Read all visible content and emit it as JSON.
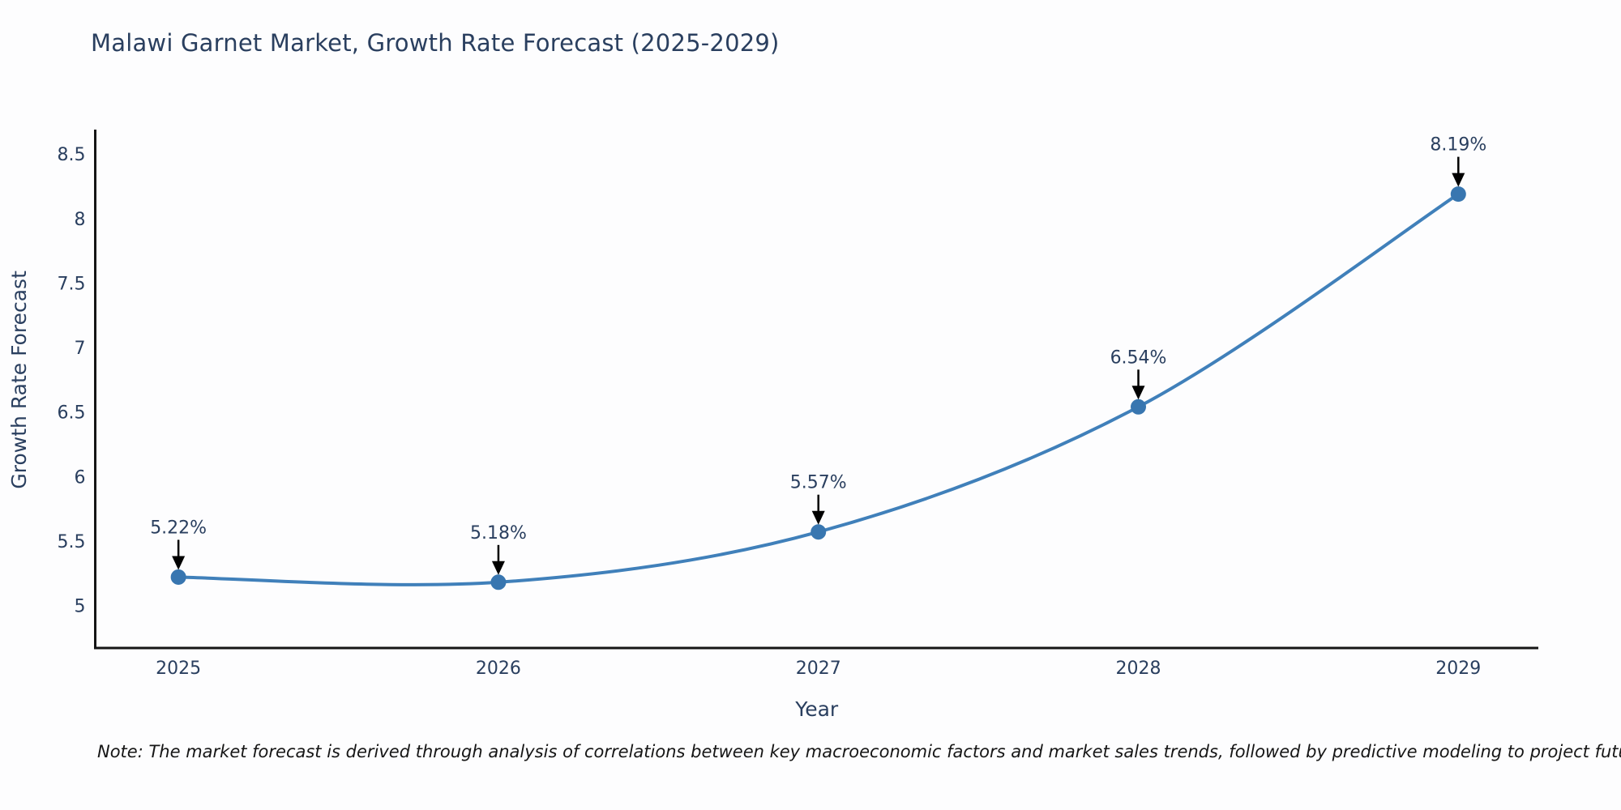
{
  "note": "Note: The market forecast is derived through analysis of correlations between key macroeconomic factors and market sales trends, followed by predictive modeling to project future sales",
  "chart_data": {
    "type": "line",
    "title": "Malawi Garnet Market, Growth Rate Forecast (2025-2029)",
    "xlabel": "Year",
    "ylabel": "Growth Rate Forecast",
    "x": [
      2025,
      2026,
      2027,
      2028,
      2029
    ],
    "series": [
      {
        "name": "Growth Rate Forecast",
        "values": [
          5.22,
          5.18,
          5.57,
          6.54,
          8.19
        ]
      }
    ],
    "point_labels": [
      "5.22%",
      "5.18%",
      "5.57%",
      "6.54%",
      "8.19%"
    ],
    "xticks": [
      "2025",
      "2026",
      "2027",
      "2028",
      "2029"
    ],
    "yticks": [
      5,
      5.5,
      6,
      6.5,
      7,
      7.5,
      8,
      8.5
    ],
    "xlim": [
      2024.74,
      2029.25
    ],
    "ylim": [
      4.67,
      8.69
    ],
    "grid": false,
    "legend": "none",
    "line_shape": "spline",
    "annotations": "down-arrow-to-point",
    "colors": {
      "line": "#4080ba",
      "marker": "#3876b0",
      "axis": "#151515",
      "text": "#2a3f5f",
      "arrow": "#000000",
      "background": "#fdfdfe"
    }
  }
}
